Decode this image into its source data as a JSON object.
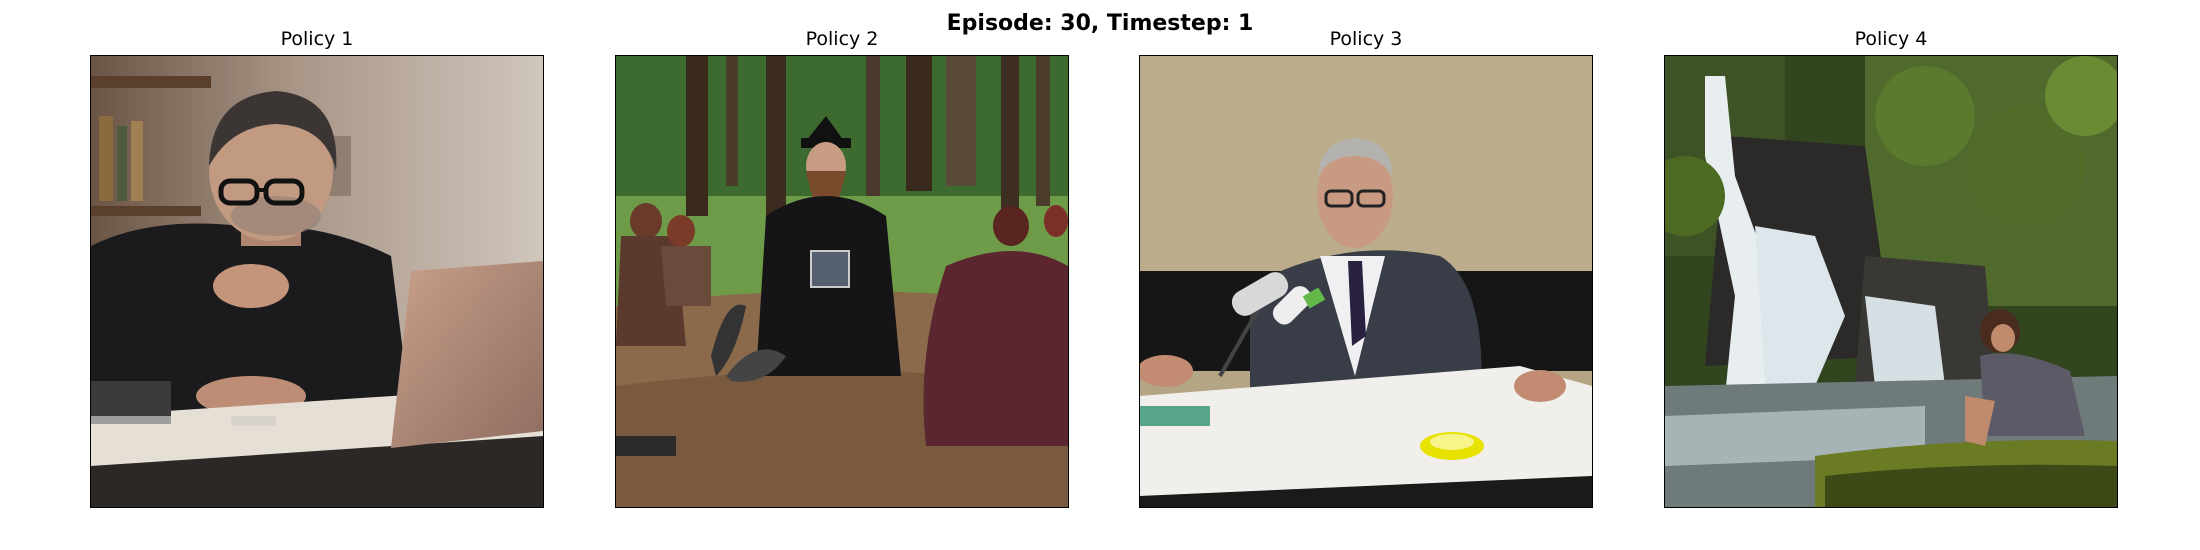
{
  "figure": {
    "suptitle": "Episode: 30, Timestep: 1"
  },
  "panels": [
    {
      "title": "Policy 1",
      "image": "photo-man-with-glasses-using-laptop-and-phone-at-desk"
    },
    {
      "title": "Policy 2",
      "image": "photo-bearded-wizard-in-black-robe-seated-in-forest-circle-with-cloaked-women"
    },
    {
      "title": "Policy 3",
      "image": "photo-elderly-man-in-suit-speaking-at-table-with-microphones"
    },
    {
      "title": "Policy 4",
      "image": "photo-woman-sitting-on-mossy-rock-by-forest-waterfall"
    }
  ],
  "colors": {
    "background": "#ffffff",
    "text": "#000000",
    "frame": "#000000"
  }
}
